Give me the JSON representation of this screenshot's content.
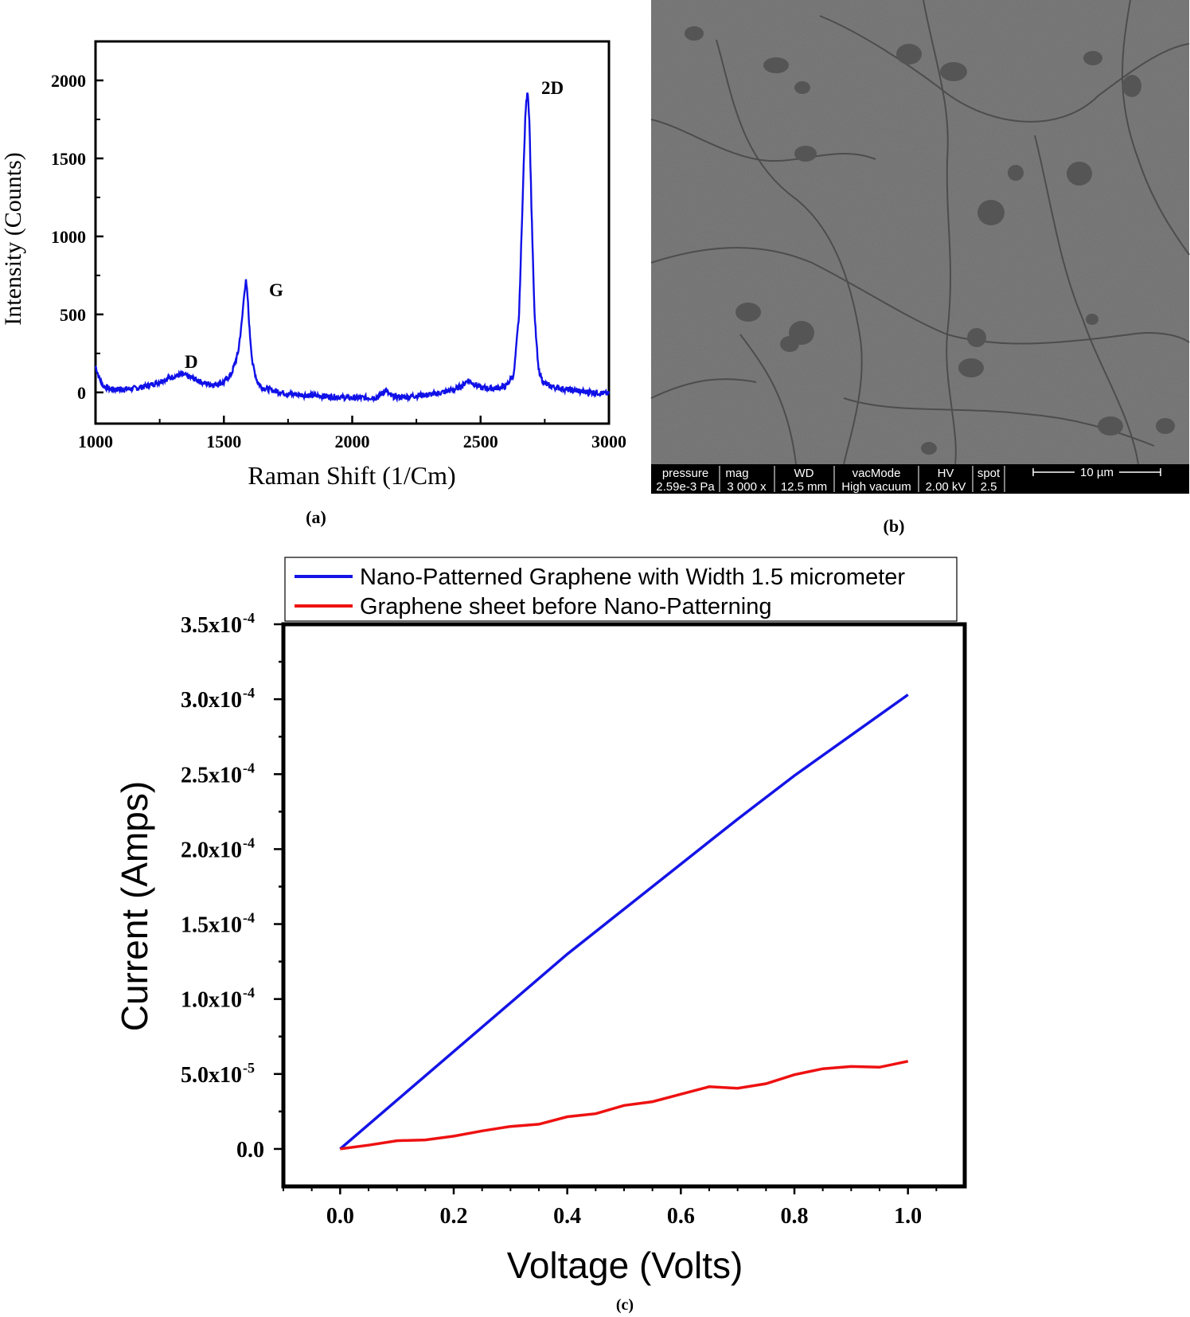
{
  "panels": {
    "a_label": "(a)",
    "b_label": "(b)",
    "c_label": "(c)"
  },
  "chart_data": [
    {
      "type": "line",
      "xlabel": "Raman Shift (1/Cm)",
      "ylabel": "Intensity (Counts)",
      "xlim": [
        1000,
        3000
      ],
      "ylim": [
        -200,
        2250
      ],
      "xticks": [
        "1000",
        "1500",
        "2000",
        "2500",
        "3000"
      ],
      "yticks": [
        "0",
        "500",
        "1000",
        "1500",
        "2000"
      ],
      "series": [
        {
          "color": "#1010e8",
          "x": [
            1000,
            1015,
            1030,
            1060,
            1100,
            1150,
            1200,
            1250,
            1300,
            1340,
            1380,
            1420,
            1460,
            1500,
            1530,
            1555,
            1570,
            1580,
            1586,
            1592,
            1600,
            1612,
            1630,
            1650,
            1700,
            1750,
            1800,
            1850,
            1900,
            1950,
            2000,
            2050,
            2100,
            2130,
            2150,
            2200,
            2250,
            2300,
            2350,
            2400,
            2430,
            2450,
            2470,
            2500,
            2550,
            2600,
            2630,
            2650,
            2665,
            2675,
            2683,
            2690,
            2698,
            2710,
            2725,
            2745,
            2770,
            2800,
            2850,
            2900,
            2950,
            3000
          ],
          "y": [
            170,
            90,
            40,
            20,
            20,
            25,
            40,
            70,
            100,
            115,
            90,
            60,
            50,
            65,
            120,
            250,
            450,
            650,
            710,
            620,
            400,
            180,
            70,
            30,
            10,
            -10,
            -15,
            -20,
            -25,
            -30,
            -35,
            -35,
            -30,
            15,
            -25,
            -30,
            -20,
            -15,
            0,
            20,
            45,
            80,
            60,
            30,
            25,
            40,
            120,
            500,
            1300,
            1800,
            1950,
            1750,
            1200,
            500,
            150,
            60,
            40,
            30,
            15,
            5,
            0,
            -10
          ]
        }
      ],
      "annotations": [
        "D",
        "G",
        "2D"
      ]
    },
    {
      "type": "line",
      "xlabel": "Voltage (Volts)",
      "ylabel": "Current (Amps)",
      "xlim": [
        -0.1,
        1.1
      ],
      "ylim": [
        -2.5e-05,
        0.00035
      ],
      "xticks": [
        "0.0",
        "0.2",
        "0.4",
        "0.6",
        "0.8",
        "1.0"
      ],
      "ytick_mantissas": [
        "0.0",
        "5.0x10",
        "1.0x10",
        "1.5x10",
        "2.0x10",
        "2.5x10",
        "3.0x10",
        "3.5x10"
      ],
      "ytick_exponents": [
        "",
        "-5",
        "-4",
        "-4",
        "-4",
        "-4",
        "-4",
        "-4"
      ],
      "legend": "top, outside plot",
      "series": [
        {
          "name": "Nano-Patterned Graphene with Width 1.5 micrometer",
          "color": "#1414e6",
          "x": [
            0.0,
            0.1,
            0.2,
            0.3,
            0.4,
            0.5,
            0.6,
            0.7,
            0.8,
            0.9,
            1.0
          ],
          "y": [
            0,
            3.25e-05,
            6.5e-05,
            9.75e-05,
            0.00013,
            0.00016,
            0.00019,
            0.00022,
            0.000249,
            0.000276,
            0.000303
          ]
        },
        {
          "name": "Graphene sheet before Nano-Patterning",
          "color": "#ee1111",
          "x": [
            0.0,
            0.05,
            0.1,
            0.15,
            0.2,
            0.25,
            0.3,
            0.35,
            0.4,
            0.45,
            0.5,
            0.55,
            0.6,
            0.65,
            0.7,
            0.75,
            0.8,
            0.85,
            0.9,
            0.95,
            1.0
          ],
          "y": [
            0,
            2.5e-06,
            5.5e-06,
            6e-06,
            8.5e-06,
            1.2e-05,
            1.5e-05,
            1.65e-05,
            2.15e-05,
            2.35e-05,
            2.9e-05,
            3.15e-05,
            3.65e-05,
            4.15e-05,
            4.05e-05,
            4.35e-05,
            4.95e-05,
            5.35e-05,
            5.5e-05,
            5.45e-05,
            5.85e-05
          ]
        }
      ]
    }
  ],
  "sem": {
    "headers": [
      "pressure",
      "mag",
      "WD",
      "vacMode",
      "HV",
      "spot"
    ],
    "values": [
      "2.59e-3 Pa",
      "3 000 x",
      "12.5 mm",
      "High vacuum",
      "2.00 kV",
      "2.5"
    ],
    "scalebar": "10 µm"
  }
}
